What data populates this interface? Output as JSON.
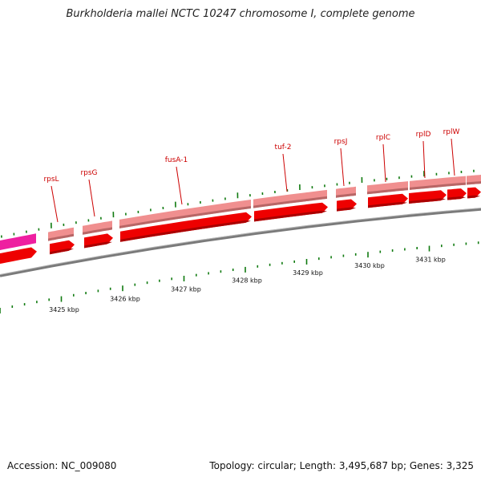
{
  "title": "Burkholderia mallei NCTC 10247 chromosome I, complete genome",
  "footer": {
    "accession": "Accession: NC_009080",
    "summary": "Topology: circular; Length: 3,495,687 bp; Genes: 3,325"
  },
  "colors": {
    "backbone": "#777777",
    "gene_forward": "#ee0000",
    "gene_forward_dark": "#aa0000",
    "gene_band": "#f08f8f",
    "gene_band_dark": "#b86666",
    "magenta_gene": "#ee1fa0",
    "label": "#cc0000",
    "tick": "#0f7a0f"
  },
  "scale": {
    "labels": [
      "3425 kbp",
      "3426 kbp",
      "3427 kbp",
      "3428 kbp",
      "3429 kbp",
      "3430 kbp",
      "3431 kbp"
    ]
  },
  "genes": [
    {
      "name": "rpsL"
    },
    {
      "name": "rpsG"
    },
    {
      "name": "fusA-1"
    },
    {
      "name": "tuf-2"
    },
    {
      "name": "rpsJ"
    },
    {
      "name": "rplC"
    },
    {
      "name": "rplD"
    },
    {
      "name": "rplW"
    }
  ]
}
